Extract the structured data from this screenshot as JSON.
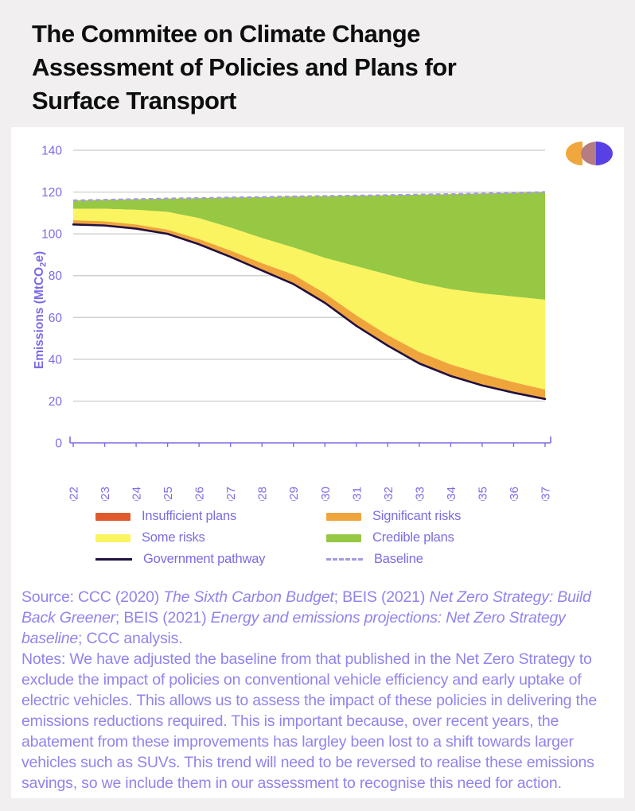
{
  "page": {
    "title": "The Commitee on Climate Change Assessment of Policies and Plans for Surface Transport"
  },
  "logo": {
    "description": "three overlapping half-disc shapes",
    "colors": [
      "#f0a73d",
      "#b57d82",
      "#5940e5"
    ]
  },
  "chart_data": {
    "type": "area",
    "title": "The Commitee on Climate Change Assessment of Policies and Plans for Surface Transport",
    "xlabel": "",
    "ylabel": "Emissions (MtCO2e)",
    "ylabel_parts": {
      "pre": "Emissions (MtCO",
      "sub": "2",
      "post": "e)"
    },
    "ylim": [
      0,
      140
    ],
    "yticks": [
      0,
      20,
      40,
      60,
      80,
      100,
      120,
      140
    ],
    "grid": "horizontal gray gridlines",
    "legend_position": "bottom, two columns",
    "x": [
      2022,
      2023,
      2024,
      2025,
      2026,
      2027,
      2028,
      2029,
      2030,
      2031,
      2032,
      2033,
      2034,
      2035,
      2036,
      2037
    ],
    "series": [
      {
        "name": "Government pathway",
        "kind": "line",
        "color": "#221041",
        "values": [
          104.5,
          104,
          102.5,
          100,
          95,
          89,
          82.5,
          76,
          67,
          56,
          46.5,
          38,
          32,
          27.5,
          24,
          21
        ]
      },
      {
        "name": "Significant risks",
        "kind": "band-top",
        "color": "#f0a53c",
        "values": [
          106.5,
          106,
          104.5,
          102,
          97.5,
          92,
          86,
          80.5,
          71.5,
          61,
          51.5,
          43.5,
          37.5,
          33,
          29,
          25.5
        ]
      },
      {
        "name": "Some risks",
        "kind": "band-top",
        "color": "#f9f45f",
        "values": [
          112,
          112,
          111.5,
          110.5,
          107.5,
          103,
          98,
          93.5,
          88.5,
          84.5,
          80.5,
          76.5,
          73.5,
          71.5,
          70,
          68.5
        ]
      },
      {
        "name": "Credible plans",
        "kind": "band-top",
        "color": "#96c843",
        "values": [
          116,
          116.3,
          116.6,
          116.9,
          117.1,
          117.4,
          117.6,
          117.9,
          118.1,
          118.3,
          118.5,
          118.8,
          119,
          119.3,
          119.6,
          120
        ]
      },
      {
        "name": "Baseline",
        "kind": "dashed-line",
        "color": "#a79ade",
        "values": [
          116,
          116.3,
          116.6,
          116.9,
          117.1,
          117.4,
          117.6,
          117.9,
          118.1,
          118.3,
          118.5,
          118.8,
          119,
          119.3,
          119.6,
          120
        ]
      }
    ],
    "stacking_note": "Bands stack between the Government pathway line and the Baseline; the Insufficient plans band has no visible width in the plot.",
    "legend": [
      {
        "label": "Insufficient plans",
        "swatch": "fill",
        "color": "#e15a2d"
      },
      {
        "label": "Significant risks",
        "swatch": "fill",
        "color": "#f0a53c"
      },
      {
        "label": "Some risks",
        "swatch": "fill",
        "color": "#f9f45f"
      },
      {
        "label": "Credible plans",
        "swatch": "fill",
        "color": "#96c843"
      },
      {
        "label": "Government pathway",
        "swatch": "line",
        "color": "#221041"
      },
      {
        "label": "Baseline",
        "swatch": "dash",
        "color": "#a79ade"
      }
    ],
    "axis_color": "#7b6ce4"
  },
  "notes": {
    "source_segments": [
      {
        "text": "Source: CCC (2020) ",
        "italic": false
      },
      {
        "text": "The Sixth Carbon Budget",
        "italic": true
      },
      {
        "text": "; BEIS (2021) ",
        "italic": false
      },
      {
        "text": "Net Zero Strategy: Build Back Greener",
        "italic": true
      },
      {
        "text": "; BEIS (2021) ",
        "italic": false
      },
      {
        "text": "Energy and emissions projections: Net Zero Strategy baseline",
        "italic": true
      },
      {
        "text": "; CCC analysis.",
        "italic": false
      }
    ],
    "notes_text": "Notes: We have adjusted the baseline from that published in the Net Zero Strategy to exclude the impact of policies on conventional vehicle efficiency and early uptake of electric vehicles. This allows us to assess the impact of these policies in delivering the emissions reductions required. This is important because, over recent years, the abatement from these improvements has largley been lost to a shift towards larger vehicles such as SUVs. This trend will need to be reversed to realise these emissions savings, so we include them in our assessment to recognise this need for action."
  }
}
